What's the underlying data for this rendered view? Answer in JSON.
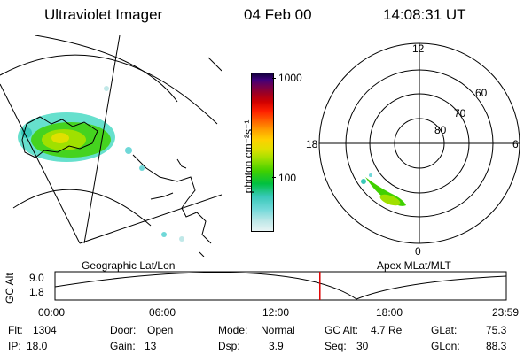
{
  "header": {
    "instrument": "Ultraviolet Imager",
    "date": "04 Feb 00",
    "time": "14:08:31 UT"
  },
  "left_panel": {
    "label": "Geographic Lat/Lon"
  },
  "right_panel": {
    "label": "Apex MLat/MLT",
    "mlt_labels": {
      "top": "12",
      "left": "18",
      "right": "6",
      "bottom": "0"
    },
    "lat_labels": [
      "60",
      "70",
      "80"
    ]
  },
  "colorbar": {
    "unit_label": "photon cm⁻²s⁻¹",
    "ticks": [
      "1000",
      "100"
    ],
    "scale": "log",
    "colors": [
      "#e8f4f4",
      "#c0e8e8",
      "#70d8d8",
      "#38c8b8",
      "#00c040",
      "#40d000",
      "#a0e000",
      "#e0e000",
      "#ffd000",
      "#ffa000",
      "#ff6000",
      "#ff2000",
      "#d00000",
      "#a00020",
      "#700050",
      "#40007a",
      "#10003a"
    ]
  },
  "timeline": {
    "ylabel": "GC Alt",
    "yticks": [
      "9.0",
      "1.8"
    ],
    "xticks": [
      "00:00",
      "06:00",
      "12:00",
      "18:00",
      "23:59"
    ],
    "current_time_fraction": 0.587
  },
  "info": {
    "flt_label": "Flt:",
    "flt_value": "1304",
    "ip_label": "IP:",
    "ip_value": "18.0",
    "door_label": "Door:",
    "door_value": "Open",
    "gain_label": "Gain:",
    "gain_value": "13",
    "mode_label": "Mode:",
    "mode_value": "Normal",
    "dsp_label": "Dsp:",
    "dsp_value": "3.9",
    "gcalt_label": "GC Alt:",
    "gcalt_value": "4.7 Re",
    "seq_label": "Seq:",
    "seq_value": "30",
    "glat_label": "GLat:",
    "glat_value": "75.3",
    "glon_label": "GLon:",
    "glon_value": "88.3"
  }
}
